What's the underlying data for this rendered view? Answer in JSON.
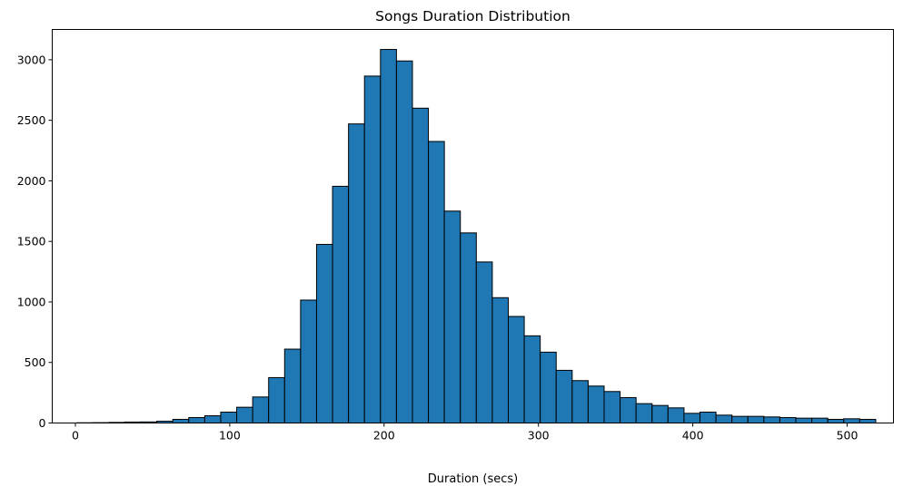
{
  "chart_data": {
    "type": "bar",
    "title": "Songs Duration Distribution",
    "xlabel": "Duration (secs)",
    "ylabel": "",
    "xlim": [
      -15,
      530
    ],
    "ylim": [
      0,
      3250
    ],
    "xticks": [
      0,
      100,
      200,
      300,
      400,
      500
    ],
    "yticks": [
      0,
      500,
      1000,
      1500,
      2000,
      2500,
      3000
    ],
    "bin_edges": [
      1.0,
      11.35,
      21.7,
      32.05,
      42.4,
      52.75,
      63.1,
      73.45,
      83.8,
      94.15,
      104.5,
      114.85,
      125.2,
      135.55,
      145.9,
      156.25,
      166.6,
      176.95,
      187.3,
      197.65,
      208.0,
      218.35,
      228.7,
      239.05,
      249.4,
      259.75,
      270.1,
      280.45,
      290.8,
      301.15,
      311.5,
      321.85,
      332.2,
      342.55,
      352.9,
      363.25,
      373.6,
      383.95,
      394.3,
      404.65,
      415.0,
      425.35,
      435.7,
      446.05,
      456.4,
      466.75,
      477.1,
      487.45,
      497.8,
      508.15,
      518.5
    ],
    "values": [
      2,
      3,
      5,
      8,
      9,
      15,
      30,
      45,
      60,
      90,
      130,
      215,
      375,
      610,
      1015,
      1475,
      1955,
      2470,
      2865,
      3085,
      2990,
      2600,
      2325,
      1750,
      1570,
      1330,
      1035,
      880,
      720,
      585,
      435,
      350,
      305,
      260,
      210,
      160,
      145,
      125,
      80,
      90,
      65,
      55,
      55,
      50,
      45,
      40,
      40,
      30,
      35,
      30
    ],
    "bar_color": "#1f77b4",
    "edge_color": "#000000",
    "grid": false
  }
}
